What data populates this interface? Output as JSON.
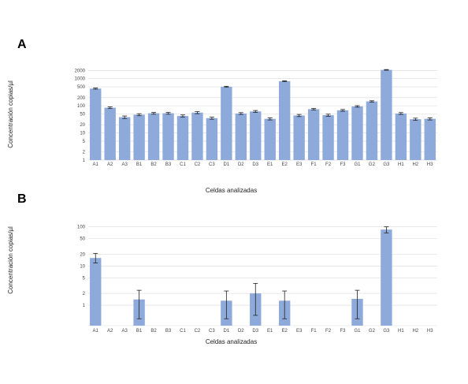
{
  "panels": [
    {
      "letter": "A",
      "chart_data": {
        "type": "bar",
        "scale": "log",
        "categories": [
          "A1",
          "A2",
          "A3",
          "B1",
          "B2",
          "B3",
          "C1",
          "C2",
          "C3",
          "D1",
          "D2",
          "D3",
          "E1",
          "E2",
          "E3",
          "F1",
          "F2",
          "F3",
          "G1",
          "G2",
          "G3",
          "H1",
          "H2",
          "H3"
        ],
        "values": [
          430,
          85,
          38,
          47,
          53,
          53,
          42,
          56,
          35,
          500,
          52,
          62,
          33,
          800,
          44,
          75,
          45,
          68,
          95,
          145,
          2100,
          52,
          32,
          33
        ],
        "errors": [
          20,
          6,
          4,
          4,
          4,
          4,
          4,
          5,
          3,
          20,
          4,
          5,
          3,
          30,
          4,
          5,
          4,
          5,
          6,
          8,
          60,
          4,
          3,
          3
        ],
        "yticks": [
          "1",
          "2",
          "5",
          "10",
          "20",
          "50",
          "100",
          "200",
          "500",
          "1000",
          "2000"
        ],
        "ylim": [
          1,
          2500
        ],
        "xlabel": "Celdas analizadas",
        "ylabel": "Concentración copias/µl",
        "grid": true,
        "bar_color": "#8eaadb"
      }
    },
    {
      "letter": "B",
      "chart_data": {
        "type": "bar",
        "scale": "log",
        "categories": [
          "A1",
          "A2",
          "A3",
          "B1",
          "B2",
          "B3",
          "C1",
          "C2",
          "C3",
          "D1",
          "D2",
          "D3",
          "E1",
          "E2",
          "E3",
          "F1",
          "F2",
          "F3",
          "G1",
          "G2",
          "G3",
          "H1",
          "H2",
          "H3"
        ],
        "values": [
          16,
          null,
          null,
          1.4,
          null,
          null,
          null,
          null,
          null,
          1.3,
          null,
          2.0,
          null,
          1.3,
          null,
          null,
          null,
          null,
          1.45,
          null,
          85,
          null,
          null,
          null
        ],
        "err_low": [
          12,
          null,
          null,
          0.45,
          null,
          null,
          null,
          null,
          null,
          0.45,
          null,
          0.55,
          null,
          0.45,
          null,
          null,
          null,
          null,
          0.45,
          null,
          70,
          null,
          null,
          null
        ],
        "err_high": [
          21,
          null,
          null,
          2.4,
          null,
          null,
          null,
          null,
          null,
          2.3,
          null,
          3.6,
          null,
          2.3,
          null,
          null,
          null,
          null,
          2.4,
          null,
          100,
          null,
          null,
          null
        ],
        "yticks": [
          "1",
          "2",
          "5",
          "10",
          "20",
          "50",
          "100"
        ],
        "ylim": [
          0.3,
          130
        ],
        "xlabel": "Celdas analizadas",
        "ylabel": "Concentración copias/µl",
        "grid": true,
        "bar_color": "#8eaadb"
      }
    }
  ]
}
